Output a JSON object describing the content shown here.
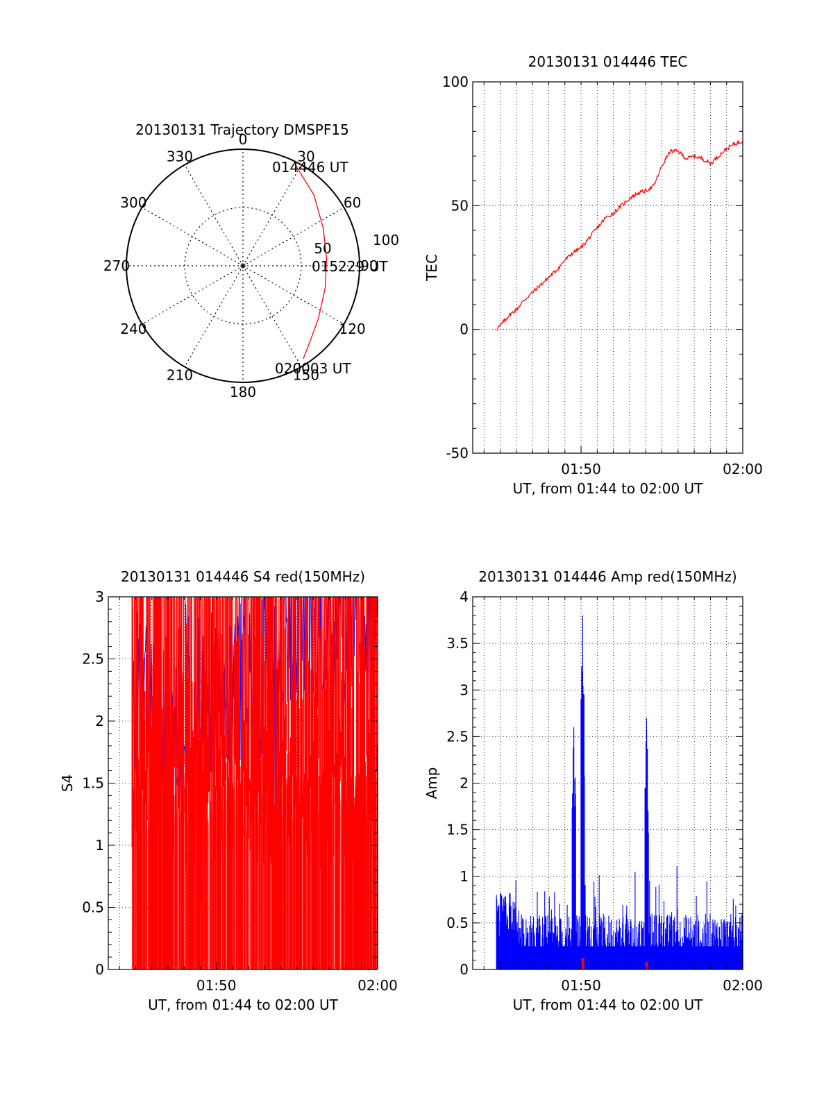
{
  "chart_data": [
    {
      "type": "polar",
      "title": "20130131 Trajectory DMSPF15",
      "angle_ticks": [
        "0",
        "30",
        "60",
        "90",
        "120",
        "150",
        "180",
        "210",
        "240",
        "270",
        "300",
        "330"
      ],
      "radial_ticks": [
        "50",
        "100"
      ],
      "radial_range": [
        0,
        100
      ],
      "angle_direction": "clockwise-from-top",
      "trajectory": {
        "color": "#ff0000",
        "azimuth_deg": [
          27,
          45,
          65,
          85,
          105,
          125,
          140,
          147
        ],
        "zenith": [
          98,
          86,
          76,
          72,
          73,
          79,
          88,
          95
        ]
      },
      "annotations": [
        "014446 UT",
        "015229 UT",
        "020003 UT"
      ]
    },
    {
      "type": "line",
      "title": "20130131 014446 TEC",
      "xlabel": "UT, from 01:44 to 02:00 UT",
      "ylabel": "TEC",
      "x_ticks": [
        "01:50",
        "02:00"
      ],
      "y_ticks": [
        "-50",
        "0",
        "50",
        "100"
      ],
      "xlim_minutes": [
        43.3,
        60.0
      ],
      "ylim": [
        -50,
        100
      ],
      "grid": true,
      "series": [
        {
          "color": "#ff0000",
          "x_minutes": [
            44.77,
            45.2,
            45.6,
            46.0,
            46.5,
            47.0,
            47.5,
            48.0,
            48.5,
            49.0,
            49.5,
            50.0,
            50.5,
            51.0,
            51.5,
            52.0,
            52.5,
            53.0,
            53.5,
            54.0,
            54.5,
            55.0,
            55.5,
            56.0,
            56.5,
            57.0,
            57.5,
            58.0,
            58.5,
            59.0,
            59.5,
            60.0
          ],
          "values": [
            0,
            3,
            6,
            8,
            12,
            15,
            18,
            21,
            24,
            28,
            31,
            33,
            37,
            41,
            45,
            47,
            50,
            53,
            55,
            56,
            58,
            66,
            72,
            72,
            69,
            70,
            69,
            67,
            70,
            73,
            75,
            76
          ]
        }
      ]
    },
    {
      "type": "line",
      "title": "20130131 014446 S4 red(150MHz)",
      "xlabel": "UT, from 01:44 to 02:00 UT",
      "ylabel": "S4",
      "x_ticks": [
        "01:50",
        "02:00"
      ],
      "y_ticks": [
        "0",
        "0.5",
        "1",
        "1.5",
        "2",
        "2.5",
        "3"
      ],
      "xlim_minutes": [
        43.3,
        60.0
      ],
      "ylim": [
        0,
        3
      ],
      "grid": true,
      "series": [
        {
          "color": "#0000ff",
          "x_start_minutes": 44.77,
          "x_end_minutes": 60.0,
          "samples": 420,
          "pattern": "dense noisy S4, mostly 1.2–3.0, dips near 0.5 at 01:49 and 01:53"
        },
        {
          "color": "#ff0000",
          "x_start_minutes": 44.77,
          "x_end_minutes": 60.0,
          "samples": 420,
          "pattern": "dense spikes spanning 0–3 over full interval"
        }
      ]
    },
    {
      "type": "line",
      "title": "20130131 014446 Amp red(150MHz)",
      "xlabel": "UT, from 01:44 to 02:00 UT",
      "ylabel": "Amp",
      "x_ticks": [
        "01:50",
        "02:00"
      ],
      "y_ticks": [
        "0",
        "0.5",
        "1",
        "1.5",
        "2",
        "2.5",
        "3",
        "3.5",
        "4"
      ],
      "xlim_minutes": [
        43.3,
        60.0
      ],
      "ylim": [
        0,
        4
      ],
      "grid": true,
      "series": [
        {
          "color": "#0000ff",
          "x_start_minutes": 44.77,
          "x_end_minutes": 60.0,
          "samples": 700,
          "peaks": [
            {
              "x_minutes": 49.55,
              "value": 2.6
            },
            {
              "x_minutes": 50.1,
              "value": 3.8
            },
            {
              "x_minutes": 54.05,
              "value": 2.7
            }
          ],
          "baseline": 0.45
        },
        {
          "color": "#ff0000",
          "bursts": [
            {
              "x_minutes": 50.1,
              "value": 0.12
            },
            {
              "x_minutes": 54.05,
              "value": 0.08
            }
          ]
        }
      ]
    }
  ]
}
